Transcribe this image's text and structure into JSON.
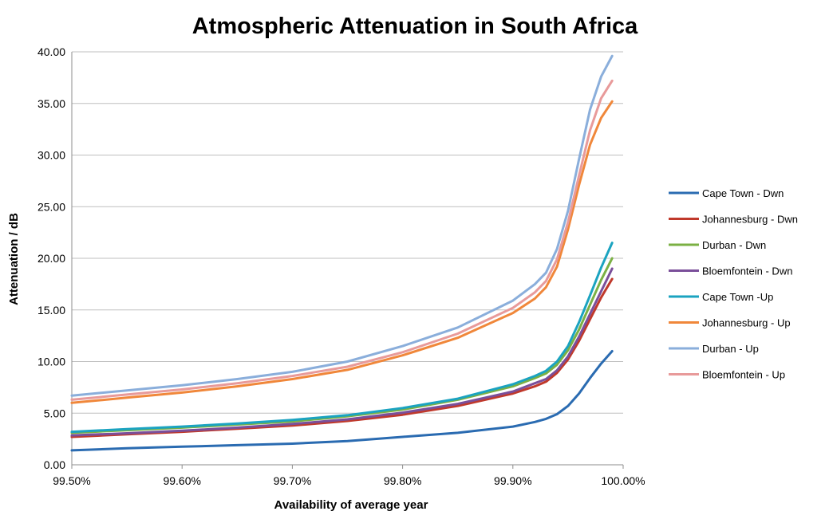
{
  "chart_data": {
    "type": "line",
    "title": "Atmospheric Attenuation in South Africa",
    "xlabel": "Availability of average year",
    "ylabel": "Attenuation / dB",
    "xlim": [
      99.5,
      100.0
    ],
    "ylim": [
      0,
      40
    ],
    "x_ticks": [
      "99.50%",
      "99.60%",
      "99.70%",
      "99.80%",
      "99.90%",
      "100.00%"
    ],
    "y_ticks": [
      "0.00",
      "5.00",
      "10.00",
      "15.00",
      "20.00",
      "25.00",
      "30.00",
      "35.00",
      "40.00"
    ],
    "grid": "horizontal",
    "legend_position": "right",
    "x": [
      99.5,
      99.55,
      99.6,
      99.65,
      99.7,
      99.75,
      99.8,
      99.85,
      99.9,
      99.92,
      99.93,
      99.94,
      99.95,
      99.96,
      99.97,
      99.98,
      99.99
    ],
    "series": [
      {
        "name": "Cape Town - Dwn",
        "color": "#2a6bb1",
        "values": [
          1.4,
          1.6,
          1.75,
          1.9,
          2.05,
          2.3,
          2.7,
          3.1,
          3.7,
          4.15,
          4.45,
          4.9,
          5.7,
          6.9,
          8.4,
          9.8,
          11.0
        ]
      },
      {
        "name": "Johannesburg - Dwn",
        "color": "#c0392b",
        "values": [
          2.7,
          2.95,
          3.2,
          3.5,
          3.8,
          4.25,
          4.85,
          5.7,
          6.9,
          7.6,
          8.05,
          8.9,
          10.2,
          12.0,
          14.1,
          16.2,
          18.0
        ]
      },
      {
        "name": "Durban - Dwn",
        "color": "#7bb044",
        "values": [
          3.1,
          3.35,
          3.6,
          3.9,
          4.2,
          4.7,
          5.35,
          6.3,
          7.6,
          8.4,
          8.85,
          9.7,
          11.1,
          13.1,
          15.5,
          17.9,
          20.0
        ]
      },
      {
        "name": "Bloemfontein - Dwn",
        "color": "#7a4f9a",
        "values": [
          2.85,
          3.05,
          3.3,
          3.6,
          3.95,
          4.4,
          5.05,
          5.9,
          7.1,
          7.9,
          8.3,
          9.15,
          10.5,
          12.4,
          14.6,
          16.8,
          19.0
        ]
      },
      {
        "name": "Cape Town -Up",
        "color": "#1ba3c0",
        "values": [
          3.2,
          3.45,
          3.7,
          4.0,
          4.35,
          4.8,
          5.5,
          6.4,
          7.8,
          8.6,
          9.1,
          10.0,
          11.5,
          13.8,
          16.4,
          19.1,
          21.5
        ]
      },
      {
        "name": "Johannesburg - Up",
        "color": "#f0873a",
        "values": [
          6.0,
          6.5,
          7.0,
          7.6,
          8.3,
          9.2,
          10.6,
          12.3,
          14.7,
          16.1,
          17.2,
          19.2,
          22.8,
          27.1,
          31.0,
          33.6,
          35.2
        ]
      },
      {
        "name": "Durban - Up",
        "color": "#8aaedb",
        "values": [
          6.7,
          7.2,
          7.7,
          8.3,
          9.0,
          10.0,
          11.5,
          13.3,
          15.9,
          17.5,
          18.6,
          20.9,
          24.6,
          29.6,
          34.4,
          37.6,
          39.6
        ]
      },
      {
        "name": "Bloemfontein - Up",
        "color": "#e89a9a",
        "values": [
          6.3,
          6.8,
          7.3,
          7.9,
          8.6,
          9.5,
          10.9,
          12.7,
          15.2,
          16.7,
          17.8,
          19.9,
          23.5,
          28.0,
          32.4,
          35.5,
          37.2
        ]
      }
    ]
  }
}
